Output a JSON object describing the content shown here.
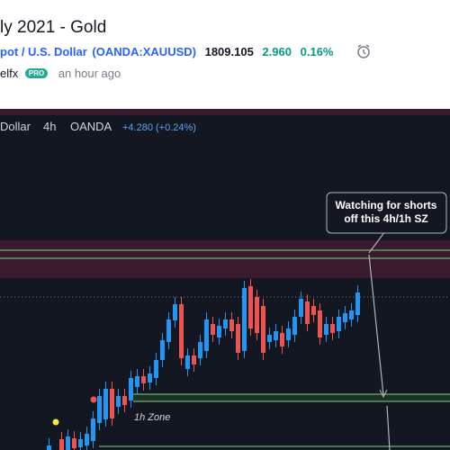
{
  "header": {
    "title": "ly 2021 - Gold",
    "symbol_name": "pot / U.S. Dollar",
    "symbol_code": "(OANDA:XAUUSD)",
    "price": "1809.105",
    "change": "2.960",
    "change_pct": "0.16%"
  },
  "author": {
    "name": "elfx",
    "badge": "PRO",
    "time": "an hour ago"
  },
  "chart": {
    "legend": {
      "symbol": "Dollar",
      "interval": "4h",
      "exchange": "OANDA",
      "change": "+4.280 (+0.24%)"
    },
    "callout": [
      "Watching for shorts",
      "off this 4h/1h SZ"
    ],
    "zone_label": "1h Zone"
  }
}
